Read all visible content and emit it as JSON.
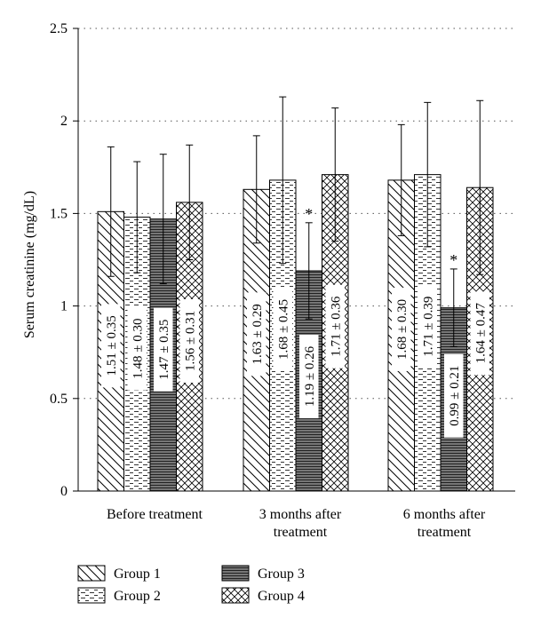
{
  "chart_data": {
    "type": "bar",
    "title": "",
    "xlabel": "",
    "ylabel": "Serum creatinine (mg/dL)",
    "ylim": [
      0,
      2.5
    ],
    "yticks": [
      "0",
      "0.5",
      "1",
      "1.5",
      "2",
      "2.5"
    ],
    "grid": "horizontal-dotted",
    "legend_position": "bottom",
    "categories": [
      [
        "Before treatment"
      ],
      [
        "3 months after",
        "treatment"
      ],
      [
        "6 months after",
        "treatment"
      ]
    ],
    "series": [
      {
        "name": "Group 1",
        "pattern": "diagonal",
        "values": [
          1.51,
          1.63,
          1.68
        ],
        "errors_upper": [
          0.35,
          0.29,
          0.3
        ],
        "errors_lower": [
          0.35,
          0.29,
          0.3
        ],
        "labels": [
          "1.51 ± 0.35",
          "1.63 ± 0.29",
          "1.68 ± 0.30"
        ],
        "significant": [
          false,
          false,
          false
        ]
      },
      {
        "name": "Group 2",
        "pattern": "dashes",
        "values": [
          1.48,
          1.68,
          1.71
        ],
        "errors_upper": [
          0.3,
          0.45,
          0.39
        ],
        "errors_lower": [
          0.3,
          0.45,
          0.39
        ],
        "labels": [
          "1.48 ± 0.30",
          "1.68 ± 0.45",
          "1.71 ± 0.39"
        ],
        "significant": [
          false,
          false,
          false
        ]
      },
      {
        "name": "Group 3",
        "pattern": "horizontal",
        "values": [
          1.47,
          1.19,
          0.99
        ],
        "errors_upper": [
          0.35,
          0.26,
          0.21
        ],
        "errors_lower": [
          0.35,
          0.26,
          0.21
        ],
        "labels": [
          "1.47 ± 0.35",
          "1.19 ± 0.26",
          "0.99 ± 0.21"
        ],
        "significant": [
          false,
          true,
          true
        ]
      },
      {
        "name": "Group 4",
        "pattern": "crosshatch",
        "values": [
          1.56,
          1.71,
          1.64
        ],
        "errors_upper": [
          0.31,
          0.36,
          0.47
        ],
        "errors_lower": [
          0.31,
          0.36,
          0.47
        ],
        "labels": [
          "1.56 ± 0.31",
          "1.71 ± 0.36",
          "1.64 ± 0.47"
        ],
        "significant": [
          false,
          false,
          false
        ]
      }
    ],
    "significance_marker": "*"
  }
}
